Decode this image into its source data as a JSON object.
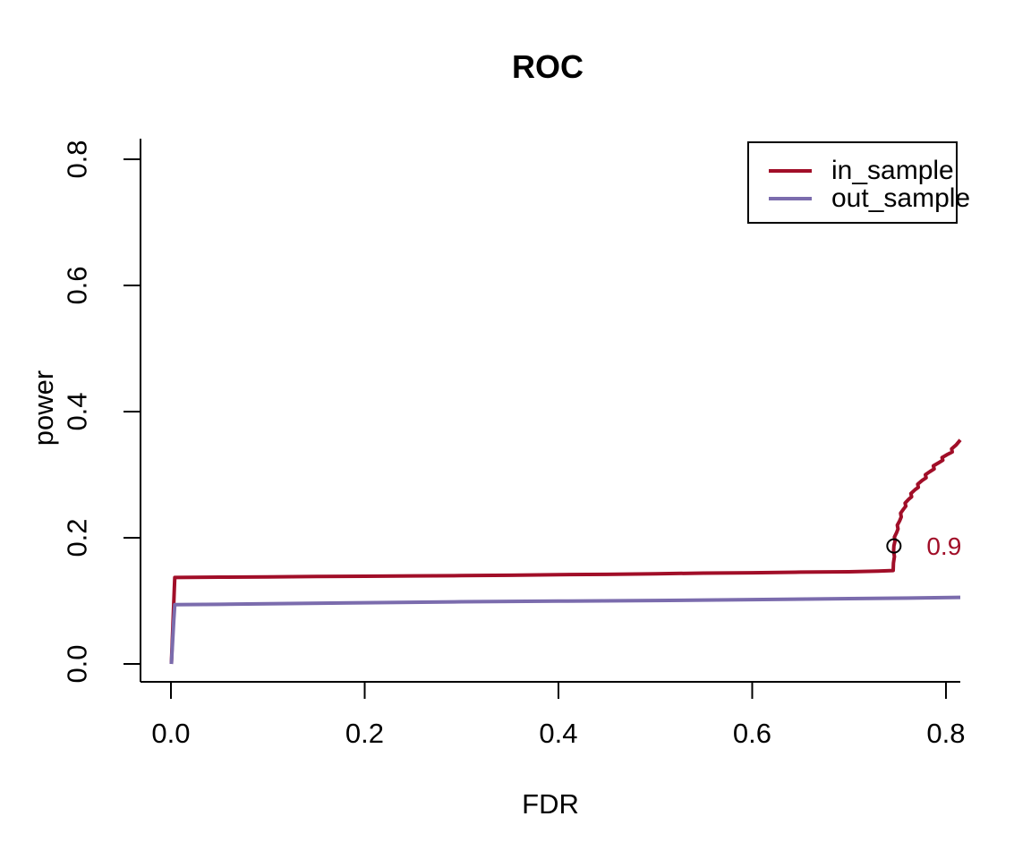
{
  "chart_data": {
    "type": "line",
    "title": "ROC",
    "xlabel": "FDR",
    "ylabel": "power",
    "grid": false,
    "xlim": [
      -0.0314,
      0.8148
    ],
    "ylim": [
      -0.0284,
      0.8326
    ],
    "xticks": [
      {
        "value": 0.0,
        "label": "0.0"
      },
      {
        "value": 0.2,
        "label": "0.2"
      },
      {
        "value": 0.4,
        "label": "0.4"
      },
      {
        "value": 0.6,
        "label": "0.6"
      },
      {
        "value": 0.8,
        "label": "0.8"
      }
    ],
    "yticks": [
      {
        "value": 0.0,
        "label": "0.0"
      },
      {
        "value": 0.2,
        "label": "0.2"
      },
      {
        "value": 0.4,
        "label": "0.4"
      },
      {
        "value": 0.6,
        "label": "0.6"
      },
      {
        "value": 0.8,
        "label": "0.8"
      }
    ],
    "legend_position": "top-right",
    "series": [
      {
        "name": "in_sample",
        "color": "#A10E28",
        "points": [
          [
            0.0005,
            0.0
          ],
          [
            0.0035,
            0.12
          ],
          [
            0.004,
            0.137
          ],
          [
            0.05,
            0.1375
          ],
          [
            0.1,
            0.138
          ],
          [
            0.15,
            0.1385
          ],
          [
            0.2,
            0.139
          ],
          [
            0.25,
            0.1395
          ],
          [
            0.3,
            0.14
          ],
          [
            0.35,
            0.1405
          ],
          [
            0.4,
            0.1415
          ],
          [
            0.45,
            0.142
          ],
          [
            0.5,
            0.143
          ],
          [
            0.55,
            0.144
          ],
          [
            0.6,
            0.1445
          ],
          [
            0.65,
            0.1455
          ],
          [
            0.7,
            0.146
          ],
          [
            0.73,
            0.147
          ],
          [
            0.7455,
            0.148
          ],
          [
            0.7458,
            0.16
          ],
          [
            0.7468,
            0.17
          ],
          [
            0.746,
            0.179
          ],
          [
            0.7463,
            0.187
          ],
          [
            0.7475,
            0.195
          ],
          [
            0.7468,
            0.201
          ],
          [
            0.749,
            0.208
          ],
          [
            0.7505,
            0.214
          ],
          [
            0.7498,
            0.22
          ],
          [
            0.7523,
            0.227
          ],
          [
            0.7538,
            0.233
          ],
          [
            0.7532,
            0.239
          ],
          [
            0.756,
            0.245
          ],
          [
            0.7585,
            0.25
          ],
          [
            0.7578,
            0.255
          ],
          [
            0.7615,
            0.261
          ],
          [
            0.7645,
            0.265
          ],
          [
            0.7638,
            0.27
          ],
          [
            0.768,
            0.276
          ],
          [
            0.7715,
            0.28
          ],
          [
            0.7708,
            0.285
          ],
          [
            0.7755,
            0.291
          ],
          [
            0.7795,
            0.295
          ],
          [
            0.7788,
            0.3
          ],
          [
            0.7835,
            0.305
          ],
          [
            0.7878,
            0.309
          ],
          [
            0.787,
            0.314
          ],
          [
            0.7925,
            0.319
          ],
          [
            0.7968,
            0.323
          ],
          [
            0.796,
            0.327
          ],
          [
            0.8015,
            0.332
          ],
          [
            0.8065,
            0.336
          ],
          [
            0.8058,
            0.341
          ],
          [
            0.8105,
            0.347
          ],
          [
            0.8148,
            0.355
          ]
        ]
      },
      {
        "name": "out_sample",
        "color": "#7B6CAD",
        "points": [
          [
            0.0005,
            0.0
          ],
          [
            0.003,
            0.07
          ],
          [
            0.004,
            0.094
          ],
          [
            0.05,
            0.0945
          ],
          [
            0.1,
            0.0955
          ],
          [
            0.2,
            0.097
          ],
          [
            0.3,
            0.0985
          ],
          [
            0.4,
            0.0995
          ],
          [
            0.5,
            0.1005
          ],
          [
            0.6,
            0.102
          ],
          [
            0.7,
            0.1035
          ],
          [
            0.75,
            0.1042
          ],
          [
            0.8148,
            0.1055
          ]
        ]
      }
    ],
    "annotation": {
      "label": "0.9",
      "color": "#A10E28",
      "text_x": 0.798,
      "text_y": 0.186,
      "marker": {
        "shape": "open-circle",
        "color": "#000000",
        "x": 0.7463,
        "y": 0.187
      }
    }
  },
  "colors": {
    "background": "#FFFFFF",
    "axis": "#000000",
    "in_sample": "#A10E28",
    "out_sample": "#7B6CAD"
  }
}
